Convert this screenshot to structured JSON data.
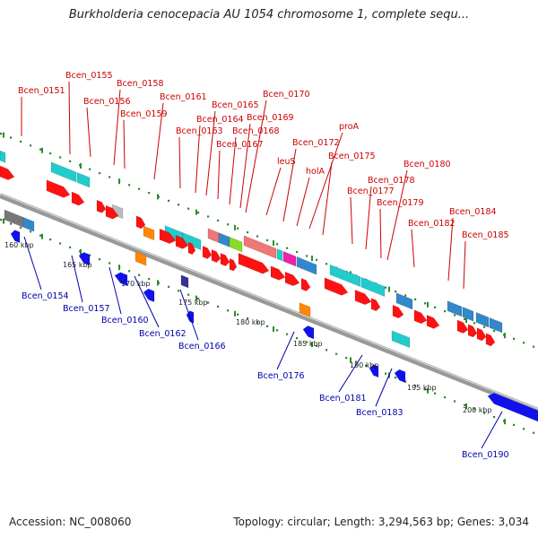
{
  "title": "Burkholderia cenocepacia AU 1054 chromosome 1, complete sequ...",
  "footer": {
    "accession": "Accession: NC_008060",
    "stats": "Topology: circular; Length: 3,294,563 bp; Genes: 3,034"
  },
  "colors": {
    "top_label": "#cc0000",
    "bottom_label": "#0000aa",
    "backbone": "#888888",
    "tick_dots": "#2d8a2d"
  },
  "scale_ticks": [
    "160 kbp",
    "165 kbp",
    "170 kbp",
    "175 kbp",
    "180 kbp",
    "185 kbp",
    "190 kbp",
    "195 kbp",
    "200 kbp"
  ],
  "top_genes": [
    "Bcen_0151",
    "Bcen_0155",
    "Bcen_0156",
    "Bcen_0158",
    "Bcen_0159",
    "Bcen_0161",
    "Bcen_0163",
    "Bcen_0164",
    "Bcen_0165",
    "Bcen_0167",
    "Bcen_0168",
    "Bcen_0169",
    "Bcen_0170",
    "leuS",
    "Bcen_0172",
    "holA",
    "proA",
    "Bcen_0175",
    "Bcen_0177",
    "Bcen_0178",
    "Bcen_0179",
    "Bcen_0180",
    "Bcen_0182",
    "Bcen_0184",
    "Bcen_0185"
  ],
  "bottom_genes": [
    "Bcen_0154",
    "Bcen_0157",
    "Bcen_0160",
    "Bcen_0162",
    "Bcen_0166",
    "Bcen_0176",
    "Bcen_0181",
    "Bcen_0183",
    "Bcen_0190"
  ]
}
